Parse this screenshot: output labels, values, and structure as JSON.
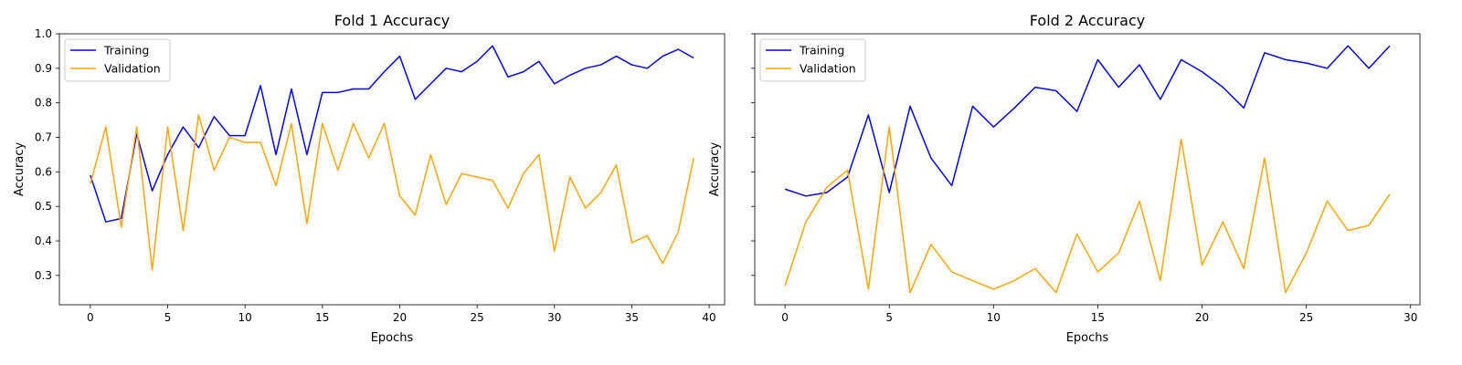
{
  "chart_data": [
    {
      "type": "line",
      "title": "Fold 1 Accuracy",
      "xlabel": "Epochs",
      "ylabel": "Accuracy",
      "xlim": [
        -2,
        41
      ],
      "ylim": [
        0.215,
        1.0
      ],
      "xticks": [
        0,
        5,
        10,
        15,
        20,
        25,
        30,
        35,
        40
      ],
      "yticks": [
        0.3,
        0.4,
        0.5,
        0.6,
        0.7,
        0.8,
        0.9,
        1.0
      ],
      "ytick_labels": [
        "0.3",
        "0.4",
        "0.5",
        "0.6",
        "0.7",
        "0.8",
        "0.9",
        "1.0"
      ],
      "legend": "top-left",
      "grid": false,
      "series": [
        {
          "name": "Training",
          "color": "#0000ff",
          "x": [
            0,
            1,
            2,
            3,
            4,
            5,
            6,
            7,
            8,
            9,
            10,
            11,
            12,
            13,
            14,
            15,
            16,
            17,
            18,
            19,
            20,
            21,
            22,
            23,
            24,
            25,
            26,
            27,
            28,
            29,
            30,
            31,
            32,
            33,
            34,
            35,
            36,
            37,
            38,
            39
          ],
          "values": [
            0.59,
            0.455,
            0.465,
            0.71,
            0.545,
            0.65,
            0.73,
            0.67,
            0.76,
            0.705,
            0.705,
            0.85,
            0.65,
            0.84,
            0.65,
            0.83,
            0.83,
            0.84,
            0.84,
            0.89,
            0.935,
            0.81,
            0.855,
            0.9,
            0.89,
            0.92,
            0.965,
            0.875,
            0.89,
            0.92,
            0.855,
            0.88,
            0.9,
            0.91,
            0.935,
            0.91,
            0.9,
            0.935,
            0.955,
            0.93
          ]
        },
        {
          "name": "Validation",
          "color": "#ffa500",
          "x": [
            0,
            1,
            2,
            3,
            4,
            5,
            6,
            7,
            8,
            9,
            10,
            11,
            12,
            13,
            14,
            15,
            16,
            17,
            18,
            19,
            20,
            21,
            22,
            23,
            24,
            25,
            26,
            27,
            28,
            29,
            30,
            31,
            32,
            33,
            34,
            35,
            36,
            37,
            38,
            39
          ],
          "values": [
            0.565,
            0.73,
            0.44,
            0.73,
            0.315,
            0.73,
            0.43,
            0.765,
            0.605,
            0.7,
            0.685,
            0.685,
            0.56,
            0.74,
            0.45,
            0.74,
            0.605,
            0.74,
            0.64,
            0.74,
            0.53,
            0.475,
            0.65,
            0.505,
            0.595,
            0.585,
            0.575,
            0.495,
            0.595,
            0.65,
            0.37,
            0.585,
            0.495,
            0.54,
            0.62,
            0.395,
            0.415,
            0.335,
            0.425,
            0.64
          ]
        }
      ]
    },
    {
      "type": "line",
      "title": "Fold 2 Accuracy",
      "xlabel": "Epochs",
      "ylabel": "Accuracy",
      "xlim": [
        -1.45,
        30.45
      ],
      "ylim": [
        0.215,
        1.0
      ],
      "xticks": [
        0,
        5,
        10,
        15,
        20,
        25,
        30
      ],
      "yticks": [
        0.3,
        0.4,
        0.5,
        0.6,
        0.7,
        0.8,
        0.9,
        1.0
      ],
      "ytick_labels": [],
      "legend": "top-left",
      "grid": false,
      "series": [
        {
          "name": "Training",
          "color": "#0000ff",
          "x": [
            0,
            1,
            2,
            3,
            4,
            5,
            6,
            7,
            8,
            9,
            10,
            11,
            12,
            13,
            14,
            15,
            16,
            17,
            18,
            19,
            20,
            21,
            22,
            23,
            24,
            25,
            26,
            27,
            28,
            29
          ],
          "values": [
            0.55,
            0.53,
            0.54,
            0.585,
            0.765,
            0.54,
            0.79,
            0.64,
            0.56,
            0.79,
            0.73,
            0.785,
            0.845,
            0.835,
            0.775,
            0.925,
            0.845,
            0.91,
            0.81,
            0.925,
            0.89,
            0.845,
            0.785,
            0.945,
            0.925,
            0.915,
            0.9,
            0.965,
            0.9,
            0.965
          ]
        },
        {
          "name": "Validation",
          "color": "#ffa500",
          "x": [
            0,
            1,
            2,
            3,
            4,
            5,
            6,
            7,
            8,
            9,
            10,
            11,
            12,
            13,
            14,
            15,
            16,
            17,
            18,
            19,
            20,
            21,
            22,
            23,
            24,
            25,
            26,
            27,
            28,
            29
          ],
          "values": [
            0.27,
            0.455,
            0.555,
            0.605,
            0.26,
            0.73,
            0.25,
            0.39,
            0.31,
            0.285,
            0.26,
            0.285,
            0.32,
            0.25,
            0.42,
            0.31,
            0.365,
            0.515,
            0.285,
            0.695,
            0.33,
            0.455,
            0.32,
            0.64,
            0.25,
            0.365,
            0.515,
            0.43,
            0.445,
            0.535
          ]
        }
      ]
    }
  ]
}
